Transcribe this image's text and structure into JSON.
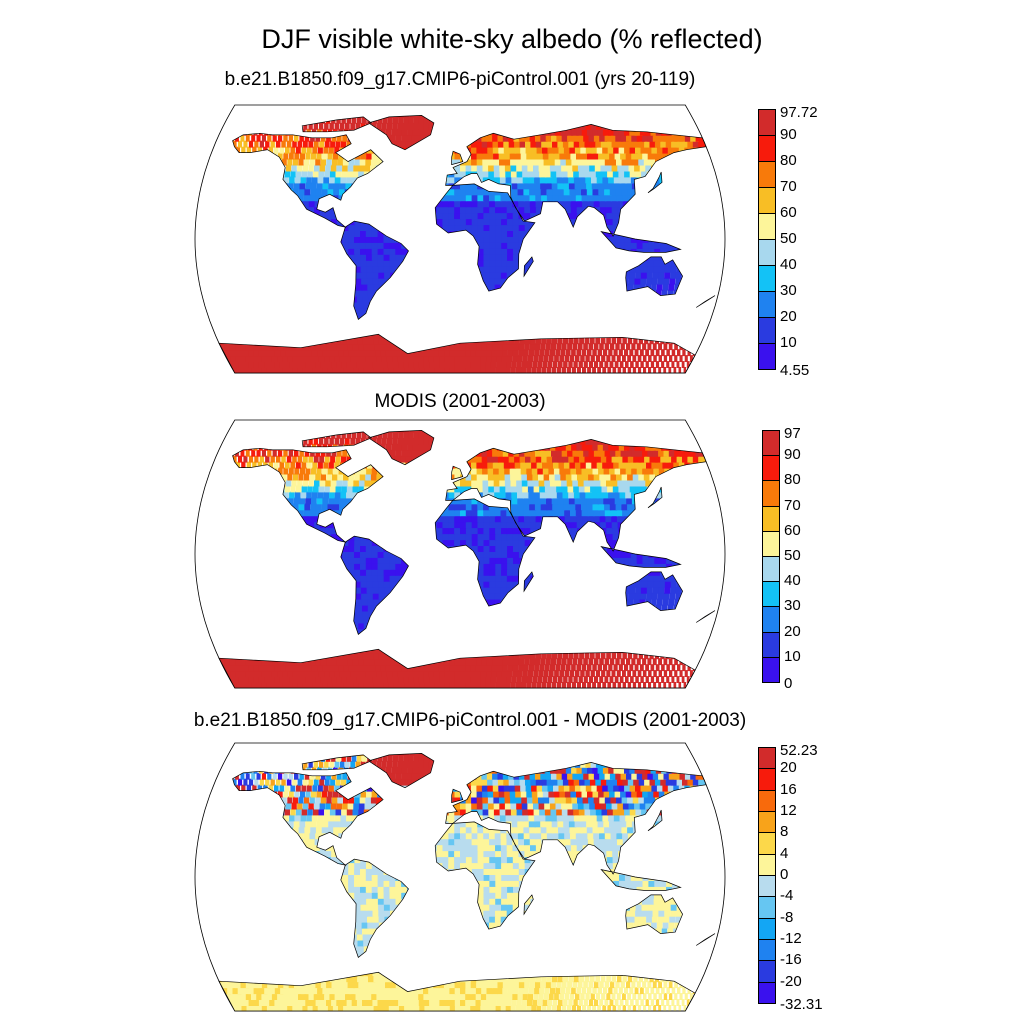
{
  "title": "DJF visible white-sky albedo (% reflected)",
  "panels": [
    {
      "title": "b.e21.B1850.f09_g17.CMIP6-piControl.001 (yrs 20-119)",
      "colorbar": {
        "labels": [
          "4.55",
          "10",
          "20",
          "30",
          "40",
          "50",
          "60",
          "70",
          "80",
          "90",
          "97.72"
        ],
        "colors": [
          "#3a11ee",
          "#2a3be0",
          "#1f82f0",
          "#13c2f6",
          "#a8d8ee",
          "#fdf59a",
          "#f8be25",
          "#f87a0a",
          "#f71b0c",
          "#d22b2b"
        ]
      },
      "map_field": "model albedo"
    },
    {
      "title": "MODIS (2001-2003)",
      "colorbar": {
        "labels": [
          "0",
          "10",
          "20",
          "30",
          "40",
          "50",
          "60",
          "70",
          "80",
          "90",
          "97"
        ],
        "colors": [
          "#3a11ee",
          "#2a3be0",
          "#1f82f0",
          "#13c2f6",
          "#a8d8ee",
          "#fdf59a",
          "#f8be25",
          "#f87a0a",
          "#f71b0c",
          "#d22b2b"
        ]
      },
      "map_field": "observed albedo"
    },
    {
      "title": "b.e21.B1850.f09_g17.CMIP6-piControl.001 - MODIS (2001-2003)",
      "colorbar": {
        "labels": [
          "-32.31",
          "-20",
          "-16",
          "-12",
          "-8",
          "-4",
          "0",
          "4",
          "8",
          "12",
          "16",
          "20",
          "52.23"
        ],
        "colors": [
          "#3a11ee",
          "#2a3be0",
          "#1f82f0",
          "#13a6f4",
          "#66c6f2",
          "#b8dcee",
          "#fdf59a",
          "#fcd84a",
          "#f8a31a",
          "#f86a0c",
          "#f71b0c",
          "#d22b2b"
        ]
      },
      "map_field": "difference"
    }
  ]
}
